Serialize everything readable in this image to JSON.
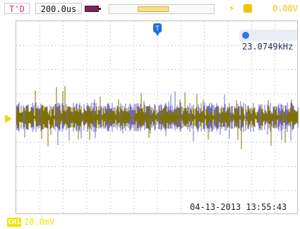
{
  "header": {
    "trigger_mode": "T'D",
    "timebase": "200.0us",
    "trigger_level": "0.00V"
  },
  "screen": {
    "frequency": "23.0749kHz",
    "datetime": "04-13-2013 13:55:43"
  },
  "channel": {
    "label": "CH1",
    "scale": "20.0mV"
  },
  "colors": {
    "ch1": "#7d7100",
    "ch2": "#6f67d8",
    "grid": "#a8a8a8",
    "trigger_marker": "#1e6fd8"
  },
  "icons": {
    "battery": "battery-icon",
    "trigger": "trigger-flag-icon",
    "frequency": "frequency-icon"
  }
}
